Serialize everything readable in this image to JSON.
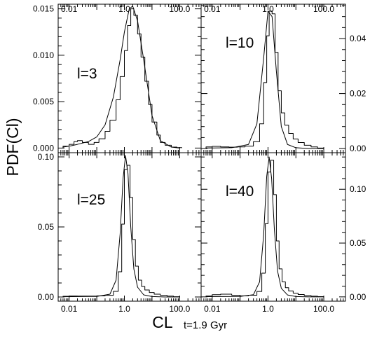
{
  "figure": {
    "ylabel": "PDF(Cl)",
    "xlabel_main": "CL",
    "xlabel_note": "t=1.9 Gyr"
  },
  "chart_data": [
    {
      "type": "line",
      "title": "",
      "panel_label": "l=3",
      "xscale": "log",
      "xlim": [
        0.004,
        600
      ],
      "ylim": [
        -0.0005,
        0.0155
      ],
      "xticks": [
        "0.01",
        "1.0",
        "100.0"
      ],
      "xtick_labels_shown": "top",
      "yticks": [
        "0.000",
        "0.005",
        "0.010",
        "0.015"
      ],
      "ytick_labels_side": "left",
      "series": [
        {
          "style": "histogram",
          "x": [
            0.006,
            0.01,
            0.015,
            0.02,
            0.03,
            0.05,
            0.08,
            0.12,
            0.2,
            0.3,
            0.5,
            0.7,
            1.0,
            1.3,
            1.7,
            2.2,
            3,
            4,
            5.5,
            7.5,
            10,
            15,
            20,
            30,
            50,
            80,
            120
          ],
          "y": [
            0.0002,
            0.0004,
            0.0007,
            0.0008,
            0.0006,
            0.0004,
            0.0006,
            0.001,
            0.0018,
            0.003,
            0.0052,
            0.0077,
            0.0105,
            0.0132,
            0.015,
            0.0143,
            0.0123,
            0.0098,
            0.0072,
            0.0047,
            0.0028,
            0.0014,
            0.0006,
            0.0003,
            0.0001,
            5e-05,
            0.0
          ]
        },
        {
          "style": "smooth",
          "x": [
            0.006,
            0.01,
            0.02,
            0.05,
            0.1,
            0.2,
            0.4,
            0.7,
            1.0,
            1.5,
            2.0,
            3.0,
            5.0,
            10,
            20,
            50,
            100
          ],
          "y": [
            0.0001,
            0.0002,
            0.0004,
            0.0007,
            0.0012,
            0.0025,
            0.0055,
            0.0095,
            0.0125,
            0.015,
            0.0153,
            0.0137,
            0.0095,
            0.0035,
            0.0008,
            0.0001,
            0.0
          ]
        }
      ]
    },
    {
      "type": "line",
      "title": "",
      "panel_label": "l=10",
      "xscale": "log",
      "xlim": [
        0.004,
        600
      ],
      "ylim": [
        -0.0015,
        0.0525
      ],
      "xticks": [
        "0.01",
        "1.0",
        "100.0"
      ],
      "xtick_labels_shown": "top",
      "yticks": [
        "0.00",
        "0.02",
        "0.04"
      ],
      "ytick_labels_side": "right",
      "series": [
        {
          "style": "histogram",
          "x": [
            0.006,
            0.01,
            0.02,
            0.04,
            0.08,
            0.15,
            0.3,
            0.5,
            0.7,
            0.9,
            1.1,
            1.4,
            1.8,
            2.3,
            3,
            4,
            5.5,
            8,
            12,
            20,
            35,
            60,
            100
          ],
          "y": [
            0.0006,
            0.0008,
            0.0006,
            0.0005,
            0.0006,
            0.0009,
            0.0025,
            0.009,
            0.024,
            0.041,
            0.05,
            0.049,
            0.035,
            0.021,
            0.013,
            0.0085,
            0.0055,
            0.0035,
            0.0022,
            0.0012,
            0.0006,
            0.0002,
            0.0
          ]
        },
        {
          "style": "smooth",
          "x": [
            0.006,
            0.05,
            0.2,
            0.4,
            0.7,
            1.0,
            1.4,
            2.0,
            3.0,
            5.0,
            10,
            30,
            100
          ],
          "y": [
            0.0002,
            0.0003,
            0.0015,
            0.009,
            0.033,
            0.05,
            0.048,
            0.028,
            0.008,
            0.0015,
            0.0003,
            0.0,
            0.0
          ]
        }
      ]
    },
    {
      "type": "line",
      "title": "",
      "panel_label": "l=25",
      "xscale": "log",
      "xlim": [
        0.004,
        600
      ],
      "ylim": [
        -0.003,
        0.103
      ],
      "xticks": [
        "0.01",
        "1.0",
        "100.0"
      ],
      "xtick_labels_shown": "bottom",
      "yticks": [
        "0.00",
        "0.05",
        "0.10"
      ],
      "ytick_labels_side": "left",
      "series": [
        {
          "style": "histogram",
          "x": [
            0.006,
            0.01,
            0.02,
            0.05,
            0.1,
            0.2,
            0.4,
            0.6,
            0.8,
            1.0,
            1.25,
            1.6,
            2.0,
            2.5,
            3.2,
            4.2,
            5.5,
            8,
            12,
            20,
            35,
            60,
            100
          ],
          "y": [
            0.0005,
            0.0007,
            0.0006,
            0.0006,
            0.0008,
            0.0012,
            0.004,
            0.018,
            0.052,
            0.091,
            0.094,
            0.071,
            0.041,
            0.022,
            0.012,
            0.0075,
            0.005,
            0.0032,
            0.002,
            0.0012,
            0.0006,
            0.0002,
            0.0
          ]
        },
        {
          "style": "smooth",
          "x": [
            0.006,
            0.1,
            0.3,
            0.5,
            0.7,
            0.9,
            1.1,
            1.35,
            1.7,
            2.2,
            3.0,
            5.0,
            10,
            30,
            100
          ],
          "y": [
            0.0002,
            0.0004,
            0.002,
            0.012,
            0.045,
            0.085,
            0.101,
            0.088,
            0.05,
            0.02,
            0.007,
            0.0015,
            0.0003,
            0.0,
            0.0
          ]
        }
      ]
    },
    {
      "type": "line",
      "title": "",
      "panel_label": "l=40",
      "xscale": "log",
      "xlim": [
        0.004,
        600
      ],
      "ylim": [
        -0.004,
        0.134
      ],
      "xticks": [
        "0.01",
        "1.0",
        "100.0"
      ],
      "xtick_labels_shown": "bottom",
      "yticks": [
        "0.00",
        "0.05",
        "0.10"
      ],
      "ytick_labels_side": "right",
      "series": [
        {
          "style": "histogram",
          "x": [
            0.006,
            0.01,
            0.02,
            0.05,
            0.1,
            0.2,
            0.4,
            0.6,
            0.8,
            1.0,
            1.25,
            1.6,
            2.0,
            2.5,
            3.2,
            4.2,
            5.5,
            8,
            12,
            20,
            35,
            60,
            100
          ],
          "y": [
            0.0008,
            0.002,
            0.0025,
            0.0015,
            0.001,
            0.0015,
            0.005,
            0.022,
            0.068,
            0.116,
            0.127,
            0.095,
            0.052,
            0.026,
            0.014,
            0.0085,
            0.0055,
            0.0035,
            0.0022,
            0.0012,
            0.0006,
            0.0002,
            0.0
          ]
        },
        {
          "style": "smooth",
          "x": [
            0.006,
            0.1,
            0.3,
            0.5,
            0.7,
            0.9,
            1.1,
            1.35,
            1.7,
            2.2,
            3.0,
            5.0,
            10,
            30,
            100
          ],
          "y": [
            0.0002,
            0.0004,
            0.002,
            0.014,
            0.058,
            0.112,
            0.13,
            0.11,
            0.062,
            0.024,
            0.008,
            0.0018,
            0.0003,
            0.0,
            0.0
          ]
        }
      ]
    }
  ]
}
